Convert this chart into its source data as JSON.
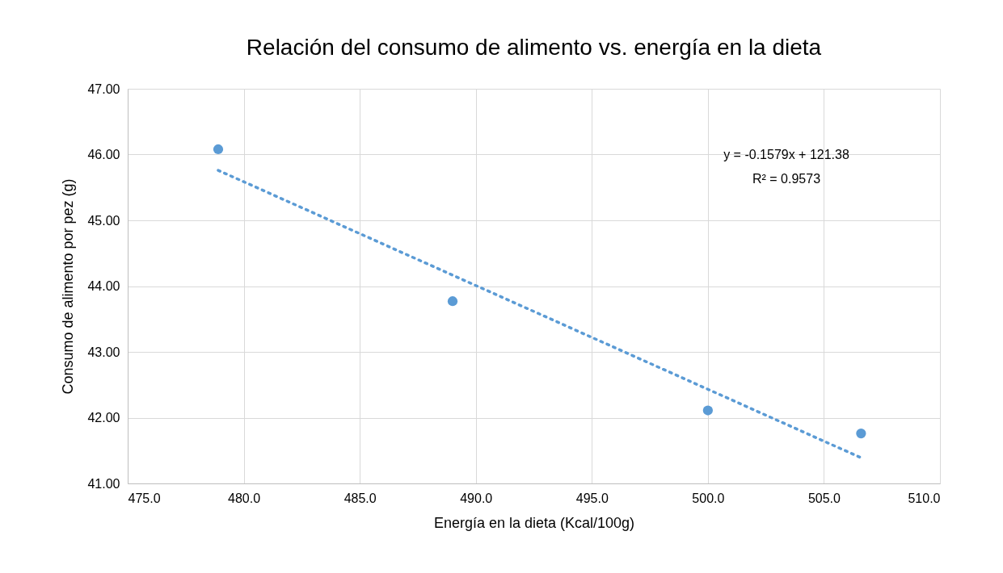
{
  "chart_data": {
    "type": "scatter",
    "title": "Relación del consumo de alimento vs. energía en la dieta",
    "xlabel": "Energía en la dieta (Kcal/100g)",
    "ylabel": "Consumo de alimento por pez (g)",
    "x": [
      478.9,
      489.0,
      500.0,
      506.6
    ],
    "values": [
      46.08,
      43.77,
      42.11,
      41.76
    ],
    "color": "#5b9bd5",
    "marker": "circle",
    "series": [
      {
        "type": "line",
        "x": [
          478.9,
          506.6
        ],
        "values": [
          45.76,
          41.39
        ],
        "color": "#5b9bd5",
        "line_style": "dotted",
        "marker": "none"
      }
    ],
    "xlim": [
      475,
      510
    ],
    "ylim": [
      41,
      47
    ],
    "xticks": [
      {
        "value": 475,
        "label": "475.0"
      },
      {
        "value": 480,
        "label": "480.0"
      },
      {
        "value": 485,
        "label": "485.0"
      },
      {
        "value": 490,
        "label": "490.0"
      },
      {
        "value": 495,
        "label": "495.0"
      },
      {
        "value": 500,
        "label": "500.0"
      },
      {
        "value": 505,
        "label": "505.0"
      },
      {
        "value": 510,
        "label": "510.0"
      }
    ],
    "yticks": [
      {
        "value": 41,
        "label": "41.00"
      },
      {
        "value": 42,
        "label": "42.00"
      },
      {
        "value": 43,
        "label": "43.00"
      },
      {
        "value": 44,
        "label": "44.00"
      },
      {
        "value": 45,
        "label": "45.00"
      },
      {
        "value": 46,
        "label": "46.00"
      },
      {
        "value": 47,
        "label": "47.00"
      }
    ],
    "grid": true,
    "annotations": [
      "y = -0.1579x + 121.38",
      "R² = 0.9573"
    ]
  }
}
